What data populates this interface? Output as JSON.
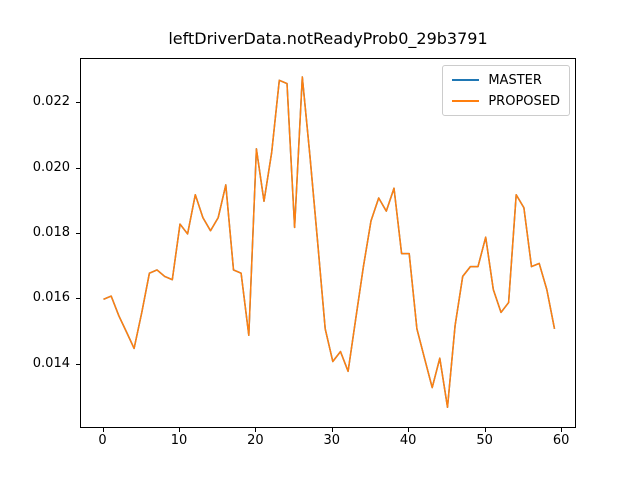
{
  "chart_data": {
    "type": "line",
    "title": "leftDriverData.notReadyProb0_29b3791",
    "xlabel": "",
    "ylabel": "",
    "grid": false,
    "legend_position": "upper right",
    "xlim": [
      -2.95,
      61.95
    ],
    "ylim": [
      0.012034,
      0.023351
    ],
    "xticks": [
      0,
      10,
      20,
      30,
      40,
      50,
      60
    ],
    "yticks": [
      0.014,
      0.016,
      0.018,
      0.02,
      0.022
    ],
    "x": [
      0,
      1,
      2,
      3,
      4,
      5,
      6,
      7,
      8,
      9,
      10,
      11,
      12,
      13,
      14,
      15,
      16,
      17,
      18,
      19,
      20,
      21,
      22,
      23,
      24,
      25,
      26,
      27,
      28,
      29,
      30,
      31,
      32,
      33,
      34,
      35,
      36,
      37,
      38,
      39,
      40,
      41,
      42,
      43,
      44,
      45,
      46,
      47,
      48,
      49,
      50,
      51,
      52,
      53,
      54,
      55,
      56,
      57,
      58,
      59
    ],
    "series": [
      {
        "name": "MASTER",
        "color": "#1f77b4",
        "values": [
          0.016,
          0.0161,
          0.0155,
          0.015,
          0.0145,
          0.0156,
          0.0168,
          0.0169,
          0.0167,
          0.0166,
          0.0183,
          0.018,
          0.0192,
          0.0185,
          0.0181,
          0.0185,
          0.0195,
          0.0169,
          0.0168,
          0.0149,
          0.0206,
          0.019,
          0.0205,
          0.0227,
          0.0226,
          0.0182,
          0.0228,
          0.0204,
          0.0178,
          0.0151,
          0.0141,
          0.0144,
          0.0138,
          0.0154,
          0.017,
          0.0184,
          0.0191,
          0.0187,
          0.0194,
          0.0174,
          0.0174,
          0.0151,
          0.0142,
          0.0133,
          0.0142,
          0.0127,
          0.0152,
          0.0167,
          0.017,
          0.017,
          0.0179,
          0.0163,
          0.0156,
          0.0159,
          0.0192,
          0.0188,
          0.017,
          0.0171,
          0.0163,
          0.0151
        ]
      },
      {
        "name": "PROPOSED",
        "color": "#ff7f0e",
        "values": [
          0.016,
          0.0161,
          0.0155,
          0.015,
          0.0145,
          0.0156,
          0.0168,
          0.0169,
          0.0167,
          0.0166,
          0.0183,
          0.018,
          0.0192,
          0.0185,
          0.0181,
          0.0185,
          0.0195,
          0.0169,
          0.0168,
          0.0149,
          0.0206,
          0.019,
          0.0205,
          0.0227,
          0.0226,
          0.0182,
          0.0228,
          0.0204,
          0.0178,
          0.0151,
          0.0141,
          0.0144,
          0.0138,
          0.0154,
          0.017,
          0.0184,
          0.0191,
          0.0187,
          0.0194,
          0.0174,
          0.0174,
          0.0151,
          0.0142,
          0.0133,
          0.0142,
          0.0127,
          0.0152,
          0.0167,
          0.017,
          0.017,
          0.0179,
          0.0163,
          0.0156,
          0.0159,
          0.0192,
          0.0188,
          0.017,
          0.0171,
          0.0163,
          0.0151
        ]
      }
    ]
  },
  "legend": {
    "entries": [
      {
        "label": "MASTER",
        "color": "#1f77b4"
      },
      {
        "label": "PROPOSED",
        "color": "#ff7f0e"
      }
    ]
  },
  "colors": {
    "background": "#ffffff",
    "spine": "#000000",
    "legend_border": "#cccccc",
    "text": "#000000"
  }
}
